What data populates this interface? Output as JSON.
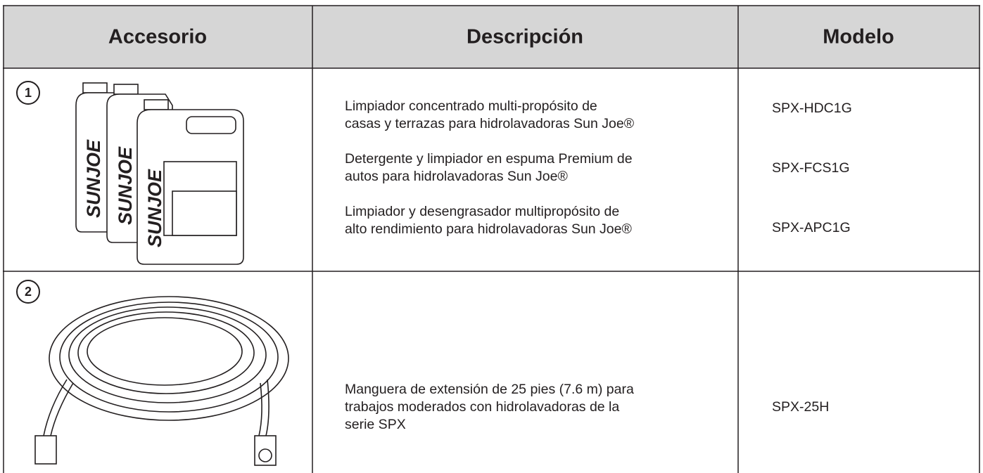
{
  "header": {
    "columns": [
      "Accesorio",
      "Descripción",
      "Modelo"
    ]
  },
  "rows": [
    {
      "number": "1",
      "jug_label": "SUNJOE",
      "items": [
        {
          "description": [
            "Limpiador concentrado multi-propósito de",
            "casas y terrazas para hidrolavadoras Sun Joe®"
          ],
          "model": "SPX-HDC1G"
        },
        {
          "description": [
            "Detergente y limpiador en espuma Premium de",
            "autos para hidrolavadoras Sun Joe®"
          ],
          "model": "SPX-FCS1G"
        },
        {
          "description": [
            "Limpiador y desengrasador multipropósito de",
            "alto rendimiento para hidrolavadoras Sun Joe®"
          ],
          "model": "SPX-APC1G"
        }
      ]
    },
    {
      "number": "2",
      "items": [
        {
          "description": [
            "Manguera de extensión de 25 pies (7.6 m) para",
            "trabajos moderados con hidrolavadoras de la",
            "serie SPX"
          ],
          "model": "SPX-25H"
        }
      ]
    }
  ]
}
